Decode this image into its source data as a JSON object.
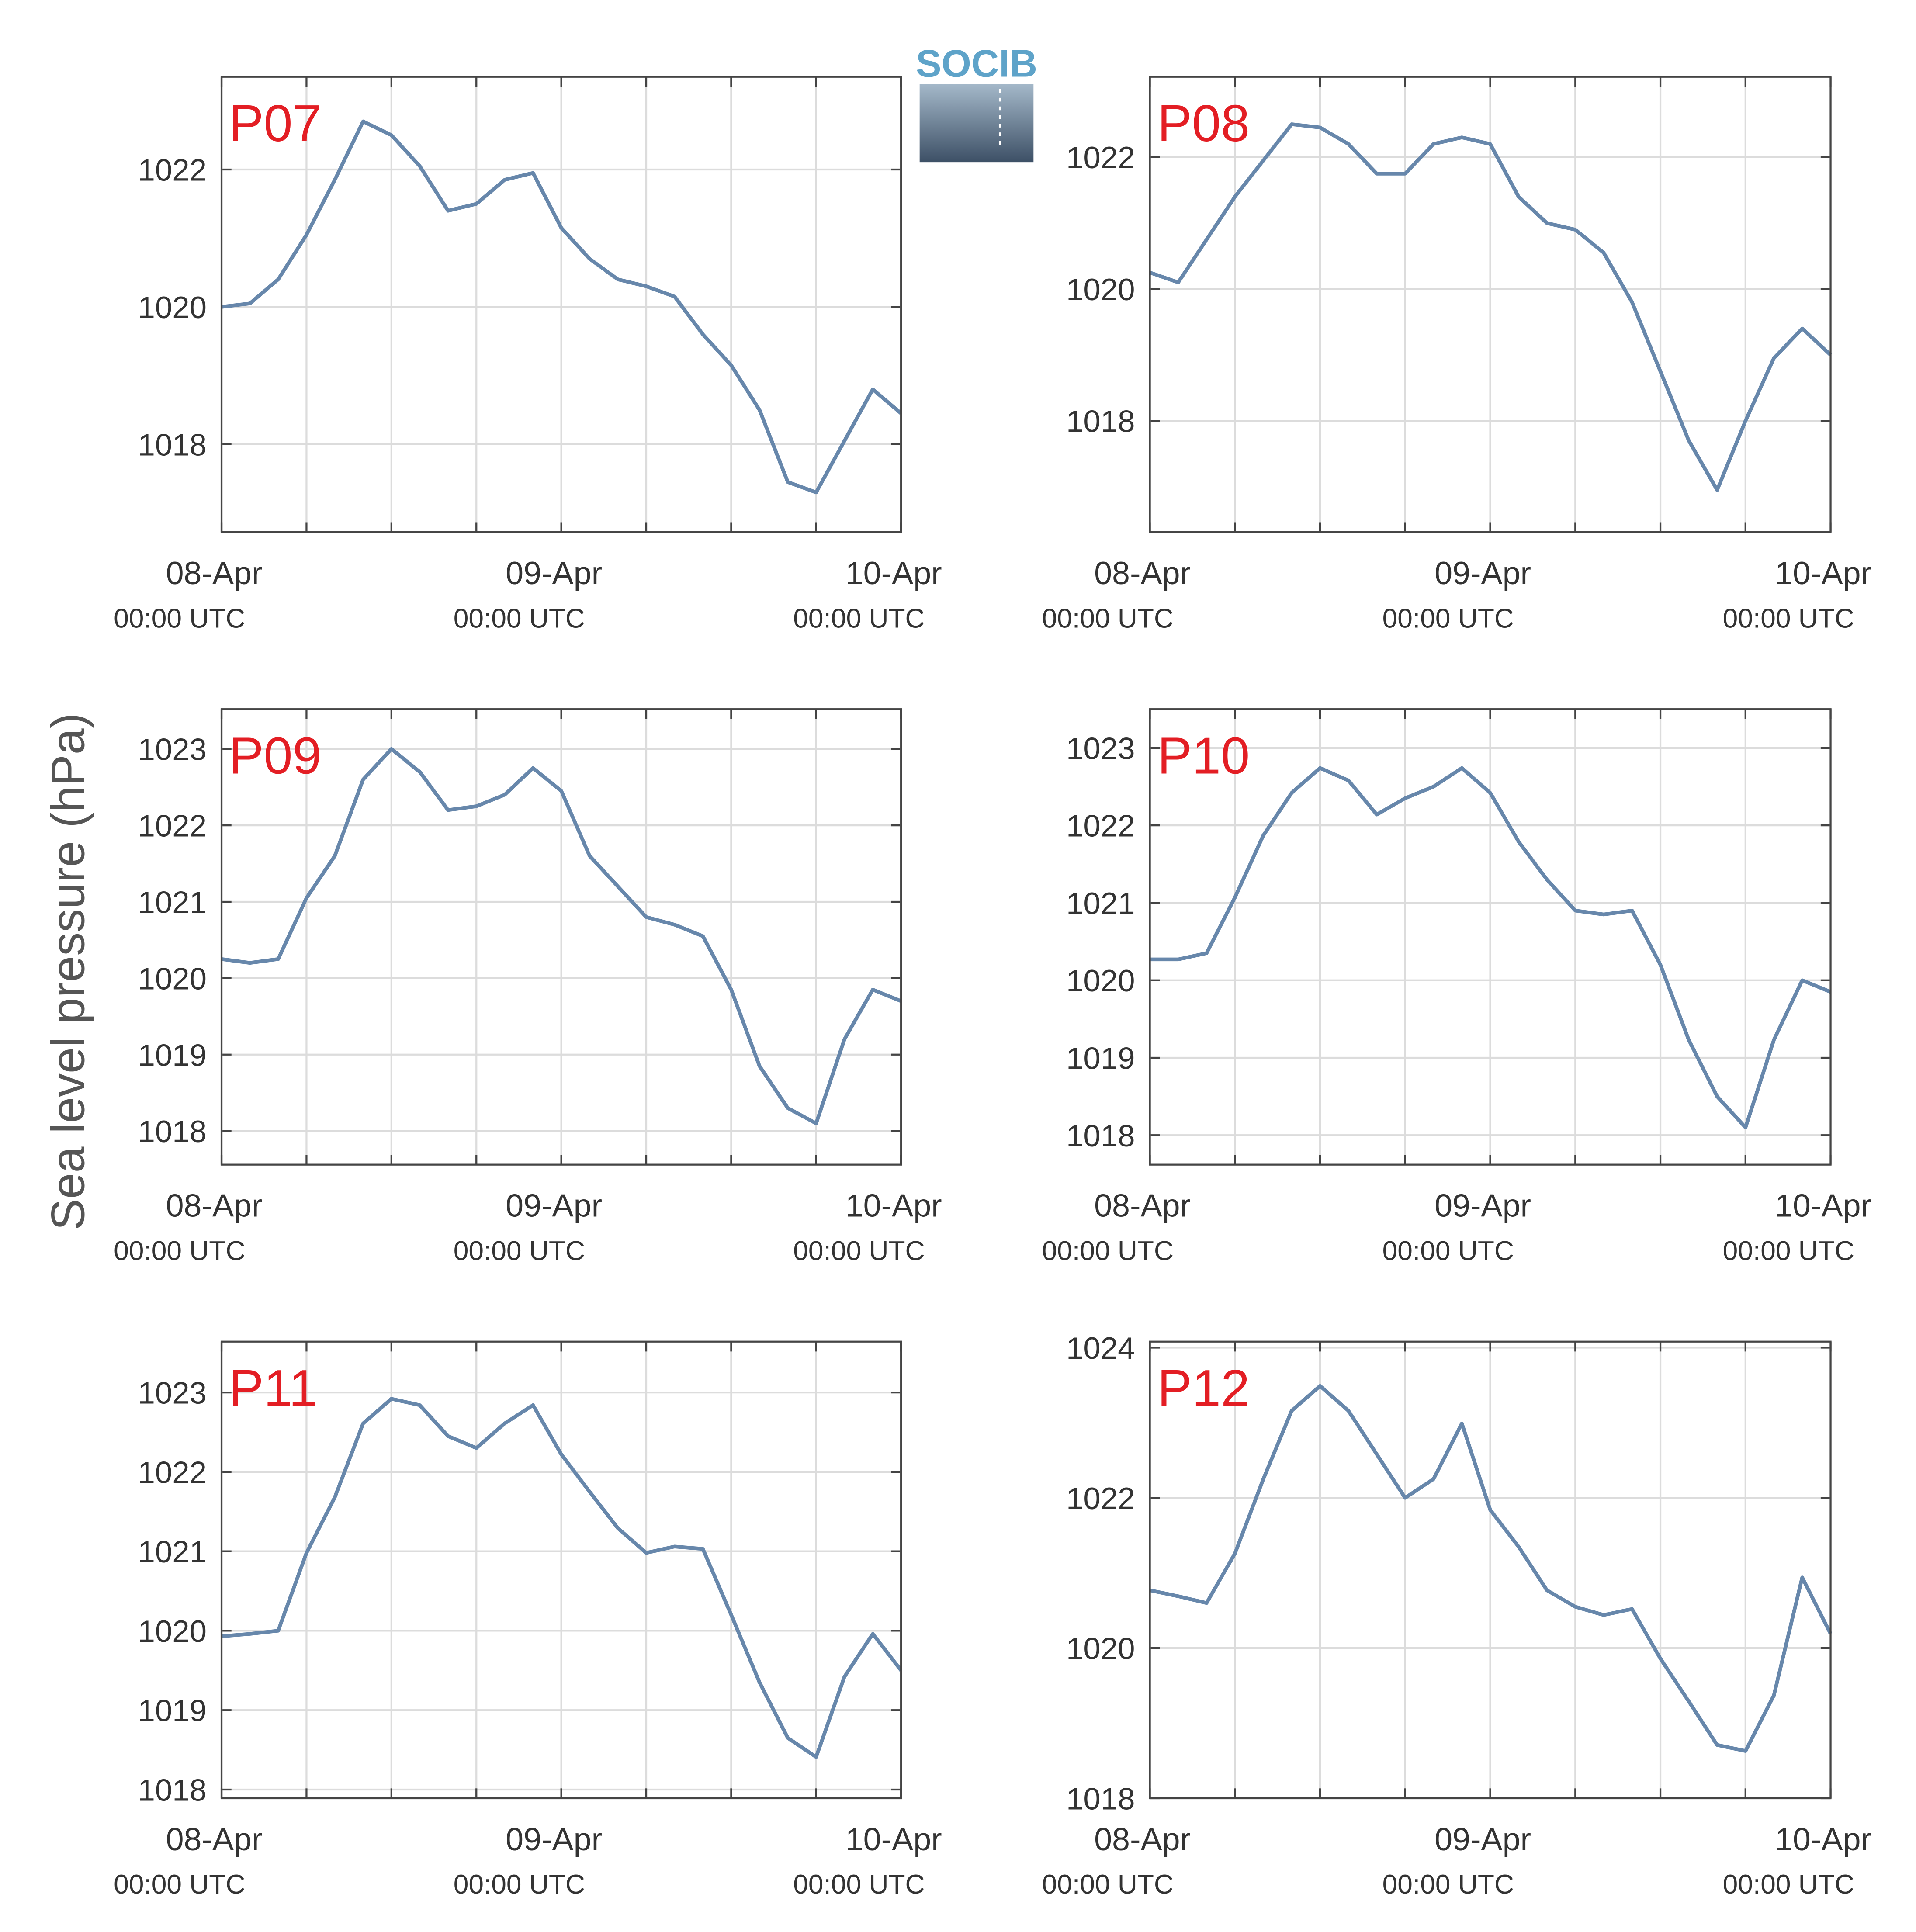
{
  "ylabel": "Sea level pressure (hPa)",
  "logo": "SOCIB",
  "chart_data": [
    {
      "type": "line",
      "title": "P07",
      "x": [
        0,
        2,
        4,
        6,
        8,
        10,
        12,
        14,
        16,
        18,
        20,
        22,
        24,
        26,
        28,
        30,
        32,
        34,
        36,
        38,
        40,
        42,
        44,
        46,
        48
      ],
      "series": [
        {
          "color": "#6787ab",
          "values": [
            1020.0,
            1020.05,
            1020.4,
            1021.05,
            1021.85,
            1022.7,
            1022.5,
            1022.05,
            1021.4,
            1021.5,
            1021.85,
            1021.95,
            1021.15,
            1020.7,
            1020.4,
            1020.3,
            1020.15,
            1019.6,
            1019.15,
            1018.5,
            1017.45,
            1017.3,
            1018.05,
            1018.8,
            1018.45
          ]
        }
      ],
      "xlim": [
        0,
        48
      ],
      "xticks": [
        {
          "value": 0,
          "label": "08-Apr",
          "sublabel": "00:00 UTC"
        },
        6,
        12,
        18,
        {
          "value": 24,
          "label": "09-Apr",
          "sublabel": "00:00 UTC"
        },
        30,
        36,
        42,
        {
          "value": 48,
          "label": "10-Apr",
          "sublabel": "00:00 UTC"
        }
      ],
      "ylim": [
        1016.72,
        1023.35
      ],
      "yticks": [
        1018,
        1020,
        1022
      ],
      "grid": true
    },
    {
      "type": "line",
      "title": "P08",
      "x": [
        0,
        2,
        4,
        6,
        8,
        10,
        12,
        14,
        16,
        18,
        20,
        22,
        24,
        26,
        28,
        30,
        32,
        34,
        36,
        38,
        40,
        42,
        44,
        46,
        48
      ],
      "series": [
        {
          "color": "#6787ab",
          "values": [
            1020.25,
            1020.1,
            1020.75,
            1021.4,
            1021.95,
            1022.5,
            1022.45,
            1022.2,
            1021.75,
            1021.75,
            1022.2,
            1022.3,
            1022.2,
            1021.4,
            1021.0,
            1020.9,
            1020.55,
            1019.8,
            1018.75,
            1017.7,
            1016.95,
            1018.0,
            1018.95,
            1019.4,
            1019.0
          ]
        }
      ],
      "xlim": [
        0,
        48
      ],
      "xticks": [
        {
          "value": 0,
          "label": "08-Apr",
          "sublabel": "00:00 UTC"
        },
        6,
        12,
        18,
        {
          "value": 24,
          "label": "09-Apr",
          "sublabel": "00:00 UTC"
        },
        30,
        36,
        42,
        {
          "value": 48,
          "label": "10-Apr",
          "sublabel": "00:00 UTC"
        }
      ],
      "ylim": [
        1016.31,
        1023.22
      ],
      "yticks": [
        1018,
        1020,
        1022
      ],
      "grid": true
    },
    {
      "type": "line",
      "title": "P09",
      "x": [
        0,
        2,
        4,
        6,
        8,
        10,
        12,
        14,
        16,
        18,
        20,
        22,
        24,
        26,
        28,
        30,
        32,
        34,
        36,
        38,
        40,
        42,
        44,
        46,
        48
      ],
      "series": [
        {
          "color": "#6787ab",
          "values": [
            1020.25,
            1020.2,
            1020.25,
            1021.05,
            1021.6,
            1022.6,
            1023.0,
            1022.7,
            1022.2,
            1022.25,
            1022.4,
            1022.75,
            1022.45,
            1021.6,
            1021.2,
            1020.8,
            1020.7,
            1020.55,
            1019.85,
            1018.85,
            1018.3,
            1018.1,
            1019.2,
            1019.85,
            1019.7
          ]
        }
      ],
      "xlim": [
        0,
        48
      ],
      "xticks": [
        {
          "value": 0,
          "label": "08-Apr",
          "sublabel": "00:00 UTC"
        },
        6,
        12,
        18,
        {
          "value": 24,
          "label": "09-Apr",
          "sublabel": "00:00 UTC"
        },
        30,
        36,
        42,
        {
          "value": 48,
          "label": "10-Apr",
          "sublabel": "00:00 UTC"
        }
      ],
      "ylim": [
        1017.56,
        1023.52
      ],
      "yticks": [
        1018,
        1019,
        1020,
        1021,
        1022,
        1023
      ],
      "grid": true
    },
    {
      "type": "line",
      "title": "P10",
      "x": [
        0,
        2,
        4,
        6,
        8,
        10,
        12,
        14,
        16,
        18,
        20,
        22,
        24,
        26,
        28,
        30,
        32,
        34,
        36,
        38,
        40,
        42,
        44,
        46,
        48
      ],
      "series": [
        {
          "color": "#6787ab",
          "values": [
            1020.27,
            1020.27,
            1020.35,
            1021.07,
            1021.87,
            1022.42,
            1022.74,
            1022.58,
            1022.14,
            1022.35,
            1022.5,
            1022.74,
            1022.42,
            1021.79,
            1021.3,
            1020.9,
            1020.85,
            1020.9,
            1020.2,
            1019.23,
            1018.5,
            1018.1,
            1019.23,
            1020.0,
            1019.85
          ]
        }
      ],
      "xlim": [
        0,
        48
      ],
      "xticks": [
        {
          "value": 0,
          "label": "08-Apr",
          "sublabel": "00:00 UTC"
        },
        6,
        12,
        18,
        {
          "value": 24,
          "label": "09-Apr",
          "sublabel": "00:00 UTC"
        },
        30,
        36,
        42,
        {
          "value": 48,
          "label": "10-Apr",
          "sublabel": "00:00 UTC"
        }
      ],
      "ylim": [
        1017.62,
        1023.5
      ],
      "yticks": [
        1018,
        1019,
        1020,
        1021,
        1022,
        1023
      ],
      "grid": true
    },
    {
      "type": "line",
      "title": "P11",
      "x": [
        0,
        2,
        4,
        6,
        8,
        10,
        12,
        14,
        16,
        18,
        20,
        22,
        24,
        26,
        28,
        30,
        32,
        34,
        36,
        38,
        40,
        42,
        44,
        46,
        48
      ],
      "series": [
        {
          "color": "#6787ab",
          "values": [
            1019.93,
            1019.96,
            1020.0,
            1020.98,
            1021.68,
            1022.61,
            1022.92,
            1022.84,
            1022.45,
            1022.3,
            1022.61,
            1022.84,
            1022.22,
            1021.75,
            1021.29,
            1020.98,
            1021.06,
            1021.03,
            1020.2,
            1019.35,
            1018.65,
            1018.41,
            1019.42,
            1019.96,
            1019.5
          ]
        }
      ],
      "xlim": [
        0,
        48
      ],
      "xticks": [
        {
          "value": 0,
          "label": "08-Apr",
          "sublabel": "00:00 UTC"
        },
        6,
        12,
        18,
        {
          "value": 24,
          "label": "09-Apr",
          "sublabel": "00:00 UTC"
        },
        30,
        36,
        42,
        {
          "value": 48,
          "label": "10-Apr",
          "sublabel": "00:00 UTC"
        }
      ],
      "ylim": [
        1017.89,
        1023.64
      ],
      "yticks": [
        1018,
        1019,
        1020,
        1021,
        1022,
        1023
      ],
      "grid": true
    },
    {
      "type": "line",
      "title": "P12",
      "x": [
        0,
        2,
        4,
        6,
        8,
        10,
        12,
        14,
        16,
        18,
        20,
        22,
        24,
        26,
        28,
        30,
        32,
        34,
        36,
        38,
        40,
        42,
        44,
        46,
        48
      ],
      "series": [
        {
          "color": "#6787ab",
          "values": [
            1020.77,
            1020.69,
            1020.6,
            1021.26,
            1022.25,
            1023.16,
            1023.49,
            1023.16,
            1022.58,
            1022.0,
            1022.25,
            1022.99,
            1021.84,
            1021.35,
            1020.77,
            1020.55,
            1020.44,
            1020.52,
            1019.86,
            1019.29,
            1018.71,
            1018.63,
            1019.37,
            1020.94,
            1020.19
          ]
        }
      ],
      "xlim": [
        0,
        48
      ],
      "xticks": [
        {
          "value": 0,
          "label": "08-Apr",
          "sublabel": "00:00 UTC"
        },
        6,
        12,
        18,
        {
          "value": 24,
          "label": "09-Apr",
          "sublabel": "00:00 UTC"
        },
        30,
        36,
        42,
        {
          "value": 48,
          "label": "10-Apr",
          "sublabel": "00:00 UTC"
        }
      ],
      "ylim": [
        1018,
        1024.08
      ],
      "yticks": [
        1018,
        1020,
        1022,
        1024
      ],
      "grid": true
    }
  ]
}
